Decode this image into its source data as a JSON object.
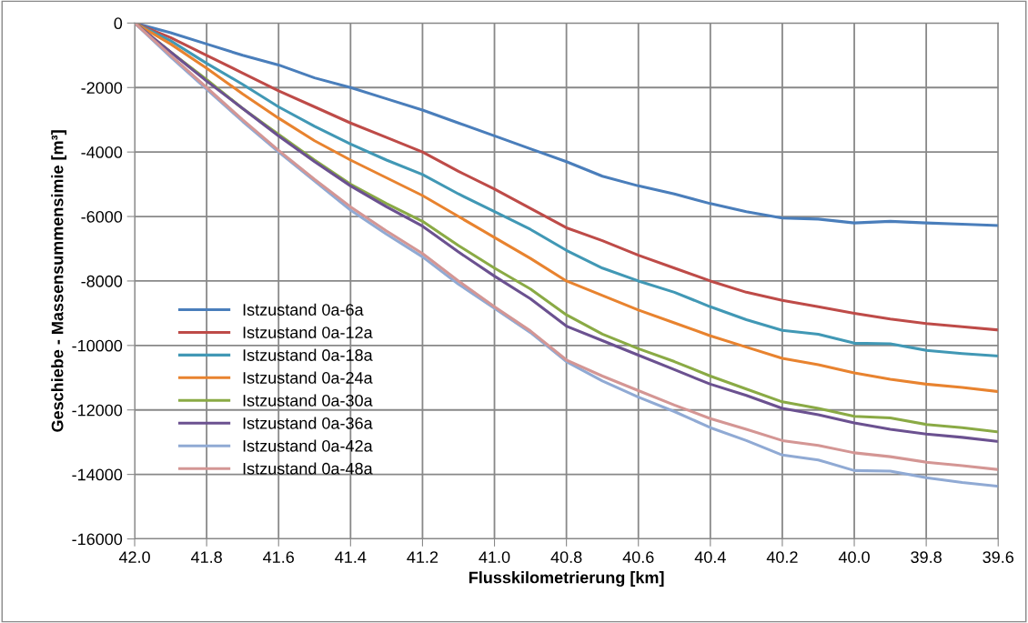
{
  "chart_data": {
    "type": "line",
    "xlabel": "Flusskilometrierung [km]",
    "ylabel": "Geschiebe - Massensummensimie [m³]",
    "x": [
      42.0,
      41.9,
      41.8,
      41.7,
      41.6,
      41.5,
      41.4,
      41.3,
      41.2,
      41.1,
      41.0,
      40.9,
      40.8,
      40.7,
      40.6,
      40.5,
      40.4,
      40.3,
      40.2,
      40.1,
      40.0,
      39.9,
      39.8,
      39.7,
      39.6
    ],
    "series": [
      {
        "name": "Istzustand 0a-6a",
        "color": "#4a7ebb",
        "values": [
          0,
          -300,
          -650,
          -1000,
          -1300,
          -1700,
          -2000,
          -2350,
          -2700,
          -3100,
          -3500,
          -3900,
          -4300,
          -4750,
          -5050,
          -5300,
          -5600,
          -5850,
          -6050,
          -6080,
          -6200,
          -6150,
          -6200,
          -6240,
          -6280
        ]
      },
      {
        "name": "Istzustand 0a-12a",
        "color": "#be4b48",
        "values": [
          0,
          -450,
          -1000,
          -1550,
          -2100,
          -2600,
          -3100,
          -3550,
          -4000,
          -4600,
          -5150,
          -5750,
          -6350,
          -6750,
          -7200,
          -7600,
          -8000,
          -8350,
          -8600,
          -8800,
          -9000,
          -9180,
          -9320,
          -9420,
          -9520
        ]
      },
      {
        "name": "Istzustand 0a-18a",
        "color": "#4198b5",
        "values": [
          0,
          -550,
          -1250,
          -1900,
          -2600,
          -3200,
          -3750,
          -4250,
          -4700,
          -5300,
          -5850,
          -6400,
          -7050,
          -7600,
          -8000,
          -8350,
          -8800,
          -9200,
          -9530,
          -9650,
          -9930,
          -9950,
          -10150,
          -10250,
          -10330
        ]
      },
      {
        "name": "Istzustand 0a-24a",
        "color": "#e8832f",
        "values": [
          0,
          -650,
          -1400,
          -2200,
          -2950,
          -3650,
          -4250,
          -4800,
          -5350,
          -6000,
          -6650,
          -7300,
          -8000,
          -8450,
          -8900,
          -9300,
          -9700,
          -10050,
          -10400,
          -10600,
          -10850,
          -11050,
          -11200,
          -11300,
          -11430
        ]
      },
      {
        "name": "Istzustand 0a-30a",
        "color": "#8aaa45",
        "values": [
          0,
          -900,
          -1750,
          -2650,
          -3450,
          -4250,
          -5000,
          -5600,
          -6150,
          -6900,
          -7600,
          -8250,
          -9050,
          -9650,
          -10100,
          -10500,
          -10950,
          -11350,
          -11750,
          -11950,
          -12200,
          -12250,
          -12450,
          -12550,
          -12680
        ]
      },
      {
        "name": "Istzustand 0a-36a",
        "color": "#6b5190",
        "values": [
          0,
          -900,
          -1800,
          -2650,
          -3500,
          -4300,
          -5050,
          -5700,
          -6300,
          -7100,
          -7850,
          -8550,
          -9400,
          -9850,
          -10300,
          -10750,
          -11200,
          -11550,
          -11950,
          -12150,
          -12400,
          -12600,
          -12750,
          -12850,
          -12980
        ]
      },
      {
        "name": "Istzustand 0a-42a",
        "color": "#90aad4",
        "values": [
          0,
          -1050,
          -2050,
          -3050,
          -4000,
          -4900,
          -5800,
          -6550,
          -7250,
          -8100,
          -8850,
          -9600,
          -10500,
          -11100,
          -11600,
          -12050,
          -12550,
          -12950,
          -13400,
          -13550,
          -13880,
          -13900,
          -14100,
          -14250,
          -14370
        ]
      },
      {
        "name": "Istzustand 0a-48a",
        "color": "#d49694",
        "values": [
          0,
          -1000,
          -2000,
          -3000,
          -3950,
          -4850,
          -5700,
          -6450,
          -7150,
          -8000,
          -8800,
          -9550,
          -10450,
          -10950,
          -11400,
          -11850,
          -12270,
          -12600,
          -12950,
          -13100,
          -13330,
          -13450,
          -13620,
          -13730,
          -13850
        ]
      }
    ],
    "xlim": [
      42.0,
      39.6
    ],
    "xticks": [
      {
        "value": 42.0,
        "label": "42.0"
      },
      {
        "value": 41.8,
        "label": "41.8"
      },
      {
        "value": 41.6,
        "label": "41.6"
      },
      {
        "value": 41.4,
        "label": "41.4"
      },
      {
        "value": 41.2,
        "label": "41.2"
      },
      {
        "value": 41.0,
        "label": "41.0"
      },
      {
        "value": 40.8,
        "label": "40.8"
      },
      {
        "value": 40.6,
        "label": "40.6"
      },
      {
        "value": 40.4,
        "label": "40.4"
      },
      {
        "value": 40.2,
        "label": "40.2"
      },
      {
        "value": 40.0,
        "label": "40.0"
      },
      {
        "value": 39.8,
        "label": "39.8"
      },
      {
        "value": 39.6,
        "label": "39.6"
      }
    ],
    "ylim": [
      -16000,
      0
    ],
    "yticks": [
      0,
      -2000,
      -4000,
      -6000,
      -8000,
      -10000,
      -12000,
      -14000,
      -16000
    ],
    "grid": true,
    "legend": "bottom left",
    "marker": "none",
    "line_style": "solid"
  }
}
